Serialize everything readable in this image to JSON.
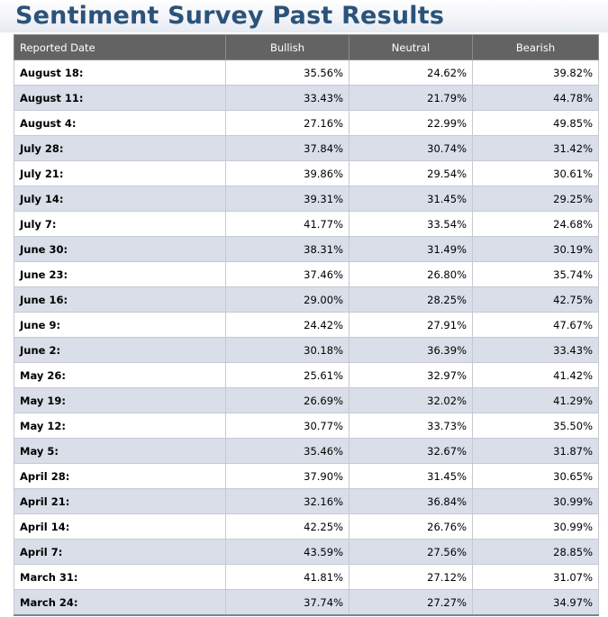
{
  "page": {
    "title": "Sentiment Survey Past Results"
  },
  "table": {
    "headers": [
      "Reported Date",
      "Bullish",
      "Neutral",
      "Bearish"
    ],
    "rows": [
      [
        "August 18:",
        "35.56%",
        "24.62%",
        "39.82%"
      ],
      [
        "August 11:",
        "33.43%",
        "21.79%",
        "44.78%"
      ],
      [
        "August 4:",
        "27.16%",
        "22.99%",
        "49.85%"
      ],
      [
        "July 28:",
        "37.84%",
        "30.74%",
        "31.42%"
      ],
      [
        "July 21:",
        "39.86%",
        "29.54%",
        "30.61%"
      ],
      [
        "July 14:",
        "39.31%",
        "31.45%",
        "29.25%"
      ],
      [
        "July 7:",
        "41.77%",
        "33.54%",
        "24.68%"
      ],
      [
        "June 30:",
        "38.31%",
        "31.49%",
        "30.19%"
      ],
      [
        "June 23:",
        "37.46%",
        "26.80%",
        "35.74%"
      ],
      [
        "June 16:",
        "29.00%",
        "28.25%",
        "42.75%"
      ],
      [
        "June 9:",
        "24.42%",
        "27.91%",
        "47.67%"
      ],
      [
        "June 2:",
        "30.18%",
        "36.39%",
        "33.43%"
      ],
      [
        "May 26:",
        "25.61%",
        "32.97%",
        "41.42%"
      ],
      [
        "May 19:",
        "26.69%",
        "32.02%",
        "41.29%"
      ],
      [
        "May 12:",
        "30.77%",
        "33.73%",
        "35.50%"
      ],
      [
        "May 5:",
        "35.46%",
        "32.67%",
        "31.87%"
      ],
      [
        "April 28:",
        "37.90%",
        "31.45%",
        "30.65%"
      ],
      [
        "April 21:",
        "32.16%",
        "36.84%",
        "30.99%"
      ],
      [
        "April 14:",
        "42.25%",
        "26.76%",
        "30.99%"
      ],
      [
        "April 7:",
        "43.59%",
        "27.56%",
        "28.85%"
      ],
      [
        "March 31:",
        "41.81%",
        "27.12%",
        "31.07%"
      ],
      [
        "March 24:",
        "37.74%",
        "27.27%",
        "34.97%"
      ]
    ]
  },
  "colors": {
    "title": "#2b5379",
    "header_bg": "#636363",
    "header_text": "#ffffff",
    "row_alt": "#d9dee9",
    "row": "#ffffff",
    "grid": "#c4c9d3"
  }
}
